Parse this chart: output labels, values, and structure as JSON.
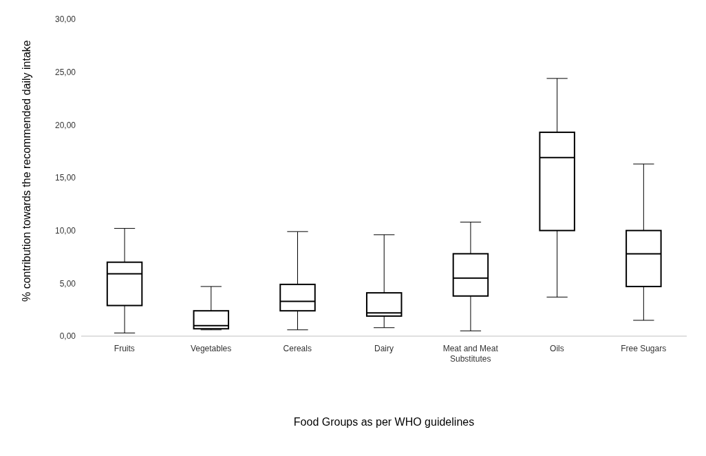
{
  "chart_data": {
    "type": "box",
    "xlabel": "Food Groups as per WHO guidelines",
    "ylabel": "% contribution towards the recommended daily intake",
    "categories": [
      "Fruits",
      "Vegetables",
      "Cereals",
      "Dairy",
      "Meat and Meat Substitutes",
      "Oils",
      "Free Sugars"
    ],
    "boxes": [
      {
        "low": 0.3,
        "q1": 2.9,
        "median": 5.9,
        "q3": 7.0,
        "high": 10.2
      },
      {
        "low": 0.6,
        "q1": 0.7,
        "median": 1.0,
        "q3": 2.4,
        "high": 4.7
      },
      {
        "low": 0.6,
        "q1": 2.4,
        "median": 3.3,
        "q3": 4.9,
        "high": 9.9
      },
      {
        "low": 0.8,
        "q1": 1.9,
        "median": 2.2,
        "q3": 4.1,
        "high": 9.6
      },
      {
        "low": 0.5,
        "q1": 3.8,
        "median": 5.5,
        "q3": 7.8,
        "high": 10.8
      },
      {
        "low": 3.7,
        "q1": 10.0,
        "median": 16.9,
        "q3": 19.3,
        "high": 24.4
      },
      {
        "low": 1.5,
        "q1": 4.7,
        "median": 7.8,
        "q3": 10.0,
        "high": 16.3
      }
    ],
    "color": "#000000",
    "ylim": [
      0,
      30
    ],
    "yticks": [
      {
        "value": 0,
        "label": "0,00"
      },
      {
        "value": 5,
        "label": "5,00"
      },
      {
        "value": 10,
        "label": "10,00"
      },
      {
        "value": 15,
        "label": "15,00"
      },
      {
        "value": 20,
        "label": "20,00"
      },
      {
        "value": 25,
        "label": "25,00"
      },
      {
        "value": 30,
        "label": "30,00"
      }
    ],
    "grid": false,
    "legend": false
  }
}
